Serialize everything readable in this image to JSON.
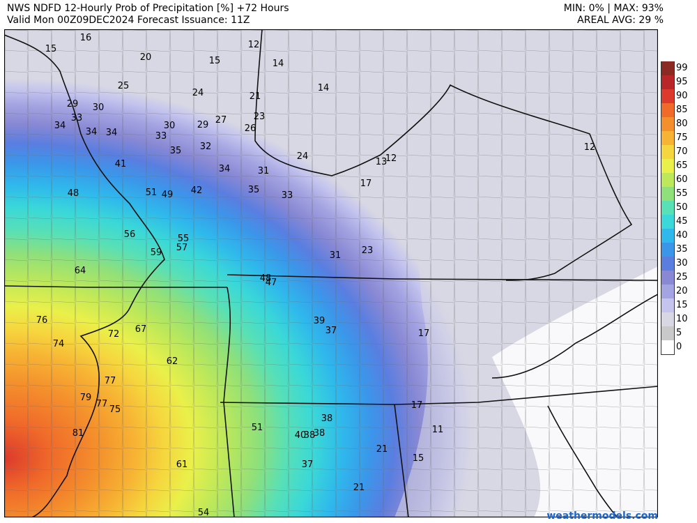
{
  "header": {
    "title_line1": "NWS NDFD 12-Hourly Prob of Precipitation [%] +72 Hours",
    "title_line2": "Valid Mon 00Z09DEC2024   Forecast Issuance: 11Z",
    "minmax": "MIN: 0% | MAX: 93%",
    "areal_avg": "AREAL AVG: 29 %"
  },
  "legend": {
    "levels": [
      {
        "label": "99",
        "color": "#8b2a22"
      },
      {
        "label": "95",
        "color": "#b8262a"
      },
      {
        "label": "90",
        "color": "#dc3a2c"
      },
      {
        "label": "85",
        "color": "#f06a2a"
      },
      {
        "label": "80",
        "color": "#f4902c"
      },
      {
        "label": "75",
        "color": "#f7b434"
      },
      {
        "label": "70",
        "color": "#f6d63e"
      },
      {
        "label": "65",
        "color": "#eaf04a"
      },
      {
        "label": "60",
        "color": "#bde85a"
      },
      {
        "label": "55",
        "color": "#8fe07a"
      },
      {
        "label": "50",
        "color": "#58e0b6"
      },
      {
        "label": "45",
        "color": "#3ad8d8"
      },
      {
        "label": "40",
        "color": "#2fb8ec"
      },
      {
        "label": "35",
        "color": "#3b96ea"
      },
      {
        "label": "30",
        "color": "#5a7ee0"
      },
      {
        "label": "25",
        "color": "#8888d4"
      },
      {
        "label": "20",
        "color": "#a4a4e2"
      },
      {
        "label": "15",
        "color": "#c4c4ee"
      },
      {
        "label": "10",
        "color": "#d8d8e4"
      },
      {
        "label": "5",
        "color": "#c9c9c9"
      },
      {
        "label": "0",
        "color": "#ffffff"
      }
    ]
  },
  "map_values": [
    "16",
    "15",
    "20",
    "12",
    "15",
    "14",
    "14",
    "25",
    "24",
    "21",
    "29",
    "30",
    "33",
    "34",
    "34",
    "34",
    "30",
    "29",
    "27",
    "33",
    "23",
    "26",
    "35",
    "32",
    "24",
    "12",
    "13",
    "12",
    "41",
    "34",
    "31",
    "35",
    "33",
    "17",
    "48",
    "51",
    "49",
    "42",
    "56",
    "55",
    "57",
    "59",
    "64",
    "31",
    "23",
    "48",
    "47",
    "76",
    "72",
    "67",
    "39",
    "37",
    "17",
    "74",
    "62",
    "77",
    "79",
    "77",
    "75",
    "17",
    "81",
    "51",
    "38",
    "40",
    "38",
    "38",
    "11",
    "21",
    "15",
    "61",
    "37",
    "21",
    "54"
  ],
  "credit": "weathermodels.com"
}
